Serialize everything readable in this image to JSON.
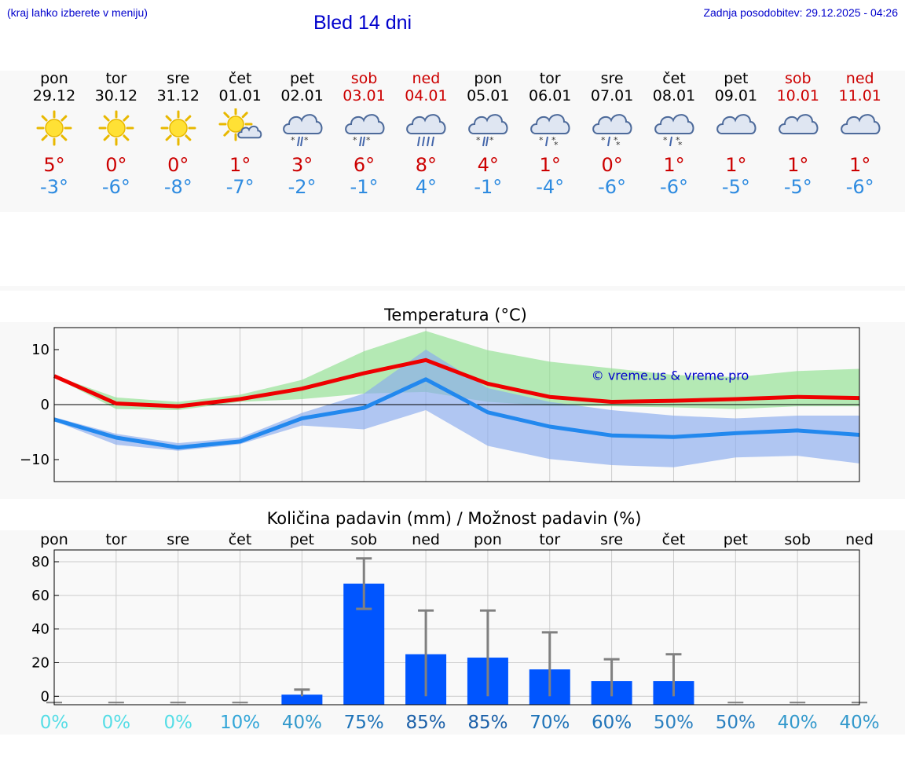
{
  "header": {
    "location_hint": "(kraj lahko izberete v meniju)",
    "title": "Bled 14 dni",
    "updated": "Zadnja posodobitev: 29.12.2025 - 04:26"
  },
  "days": [
    {
      "name": "pon",
      "date": "29.12",
      "weekend": false,
      "icon": "sun-icon",
      "tmax": "5°",
      "tmin": "-3°"
    },
    {
      "name": "tor",
      "date": "30.12",
      "weekend": false,
      "icon": "sun-icon",
      "tmax": "0°",
      "tmin": "-6°"
    },
    {
      "name": "sre",
      "date": "31.12",
      "weekend": false,
      "icon": "sun-icon",
      "tmax": "0°",
      "tmin": "-8°"
    },
    {
      "name": "čet",
      "date": "01.01",
      "weekend": false,
      "icon": "sun-cloud-icon",
      "tmax": "1°",
      "tmin": "-7°"
    },
    {
      "name": "pet",
      "date": "02.01",
      "weekend": false,
      "icon": "cloud-snow-rain-icon",
      "tmax": "3°",
      "tmin": "-2°"
    },
    {
      "name": "sob",
      "date": "03.01",
      "weekend": true,
      "icon": "cloud-snow-rain-icon",
      "tmax": "6°",
      "tmin": "-1°"
    },
    {
      "name": "ned",
      "date": "04.01",
      "weekend": true,
      "icon": "cloud-rain-icon",
      "tmax": "8°",
      "tmin": "4°"
    },
    {
      "name": "pon",
      "date": "05.01",
      "weekend": false,
      "icon": "cloud-snow-rain-icon",
      "tmax": "4°",
      "tmin": "-1°"
    },
    {
      "name": "tor",
      "date": "06.01",
      "weekend": false,
      "icon": "cloud-snow-icon",
      "tmax": "1°",
      "tmin": "-4°"
    },
    {
      "name": "sre",
      "date": "07.01",
      "weekend": false,
      "icon": "cloud-snow-icon",
      "tmax": "0°",
      "tmin": "-6°"
    },
    {
      "name": "čet",
      "date": "08.01",
      "weekend": false,
      "icon": "cloud-snow-icon",
      "tmax": "1°",
      "tmin": "-6°"
    },
    {
      "name": "pet",
      "date": "09.01",
      "weekend": false,
      "icon": "cloud-icon",
      "tmax": "1°",
      "tmin": "-5°"
    },
    {
      "name": "sob",
      "date": "10.01",
      "weekend": true,
      "icon": "cloud-icon",
      "tmax": "1°",
      "tmin": "-5°"
    },
    {
      "name": "ned",
      "date": "11.01",
      "weekend": true,
      "icon": "cloud-icon",
      "tmax": "1°",
      "tmin": "-6°"
    }
  ],
  "chart_data": [
    {
      "type": "line",
      "title": "Temperatura (°C)",
      "watermark": "© vreme.us & vreme.pro",
      "x": [
        0,
        1,
        2,
        3,
        4,
        5,
        6,
        7,
        8,
        9,
        10,
        11,
        12,
        13
      ],
      "ylim": [
        -14,
        14
      ],
      "yticks": [
        10,
        0,
        -10
      ],
      "series": [
        {
          "name": "Tmax",
          "color": "#ee0000",
          "values": [
            5.2,
            0.2,
            -0.3,
            1.0,
            2.9,
            5.7,
            8.1,
            3.8,
            1.4,
            0.5,
            0.7,
            1.0,
            1.4,
            1.2
          ]
        },
        {
          "name": "Tmin",
          "color": "#2288ee",
          "values": [
            -2.7,
            -6.0,
            -7.8,
            -6.7,
            -2.5,
            -0.6,
            4.6,
            -1.4,
            -4.0,
            -5.6,
            -5.9,
            -5.2,
            -4.7,
            -5.5
          ]
        }
      ],
      "bands": [
        {
          "name": "Tmax range",
          "color": "#8fe08f",
          "lower": [
            5.0,
            -0.8,
            -1.0,
            0.5,
            1.0,
            2.0,
            2.3,
            0.5,
            -0.2,
            -0.3,
            -0.5,
            -0.8,
            -0.3,
            -0.3
          ],
          "upper": [
            5.3,
            1.3,
            0.5,
            1.8,
            4.5,
            9.7,
            13.4,
            9.9,
            7.8,
            6.6,
            5.4,
            5.0,
            6.1,
            6.5
          ]
        },
        {
          "name": "Tmin range",
          "color": "#88aaee",
          "lower": [
            -3.0,
            -7.3,
            -8.4,
            -7.2,
            -3.8,
            -4.5,
            -1.0,
            -7.5,
            -9.9,
            -11.0,
            -11.4,
            -9.6,
            -9.3,
            -10.7
          ],
          "upper": [
            -2.3,
            -5.3,
            -7.0,
            -6.0,
            -1.5,
            2.0,
            10.0,
            3.0,
            0.5,
            -1.0,
            -2.0,
            -2.5,
            -2.0,
            -2.0
          ]
        }
      ]
    },
    {
      "type": "bar",
      "title": "Količina padavin (mm) / Možnost padavin (%)",
      "categories": [
        "pon",
        "tor",
        "sre",
        "čet",
        "pet",
        "sob",
        "ned",
        "pon",
        "tor",
        "sre",
        "čet",
        "pet",
        "sob",
        "ned"
      ],
      "values": [
        0,
        0,
        0,
        0,
        1,
        67,
        25,
        23,
        16,
        9,
        9,
        0,
        0,
        0
      ],
      "error_low": [
        0,
        0,
        0,
        0,
        0,
        52,
        0,
        0,
        0,
        0,
        0,
        0,
        0,
        0
      ],
      "error_high": [
        0,
        0,
        0,
        0,
        4,
        82,
        51,
        51,
        38,
        22,
        25,
        0,
        0,
        0
      ],
      "ylim": [
        -5,
        87
      ],
      "yticks": [
        80,
        60,
        40,
        20,
        0
      ],
      "bar_color": "#0055ff",
      "error_color": "#808080",
      "probabilities": [
        "0%",
        "0%",
        "0%",
        "10%",
        "40%",
        "75%",
        "85%",
        "85%",
        "70%",
        "60%",
        "50%",
        "50%",
        "40%",
        "40%"
      ],
      "probability_colors": [
        "#55dde6",
        "#55dde6",
        "#55dde6",
        "#33a6d8",
        "#3399cc",
        "#1e73b8",
        "#1a5fa8",
        "#1a5fa8",
        "#1e73b8",
        "#1e73b8",
        "#2a80c0",
        "#2a80c0",
        "#3399cc",
        "#3399cc"
      ]
    }
  ]
}
